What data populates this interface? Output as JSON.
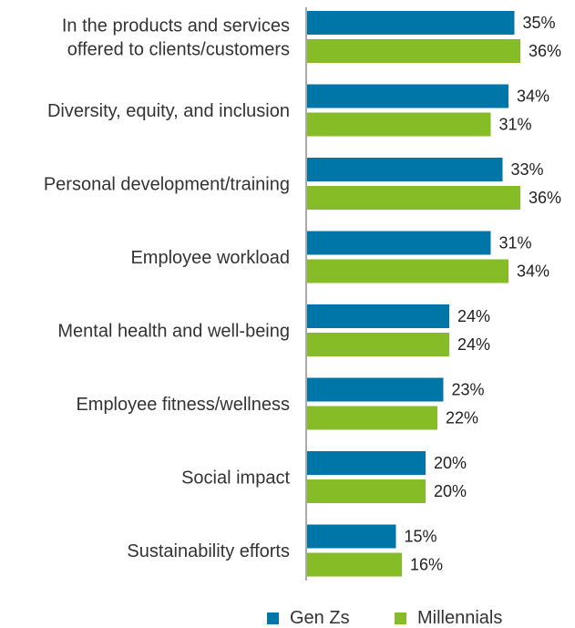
{
  "chart_data": {
    "type": "bar",
    "orientation": "horizontal",
    "categories": [
      [
        "In the products and services",
        "offered to clients/customers"
      ],
      [
        "Diversity, equity, and inclusion"
      ],
      [
        "Personal development/training"
      ],
      [
        "Employee workload"
      ],
      [
        "Mental health and well-being"
      ],
      [
        "Employee fitness/wellness"
      ],
      [
        "Social impact"
      ],
      [
        "Sustainability efforts"
      ]
    ],
    "series": [
      {
        "name": "Gen Zs",
        "color": "#0076A8",
        "values": [
          35,
          34,
          33,
          31,
          24,
          23,
          20,
          15
        ]
      },
      {
        "name": "Millennials",
        "color": "#86BC25",
        "values": [
          36,
          31,
          36,
          34,
          24,
          22,
          20,
          16
        ]
      }
    ],
    "value_suffix": "%",
    "xlim": [
      0,
      45
    ],
    "grid": false,
    "legend_position": "bottom"
  },
  "legend": {
    "gen_z_label": "Gen Zs",
    "millennials_label": "Millennials"
  }
}
